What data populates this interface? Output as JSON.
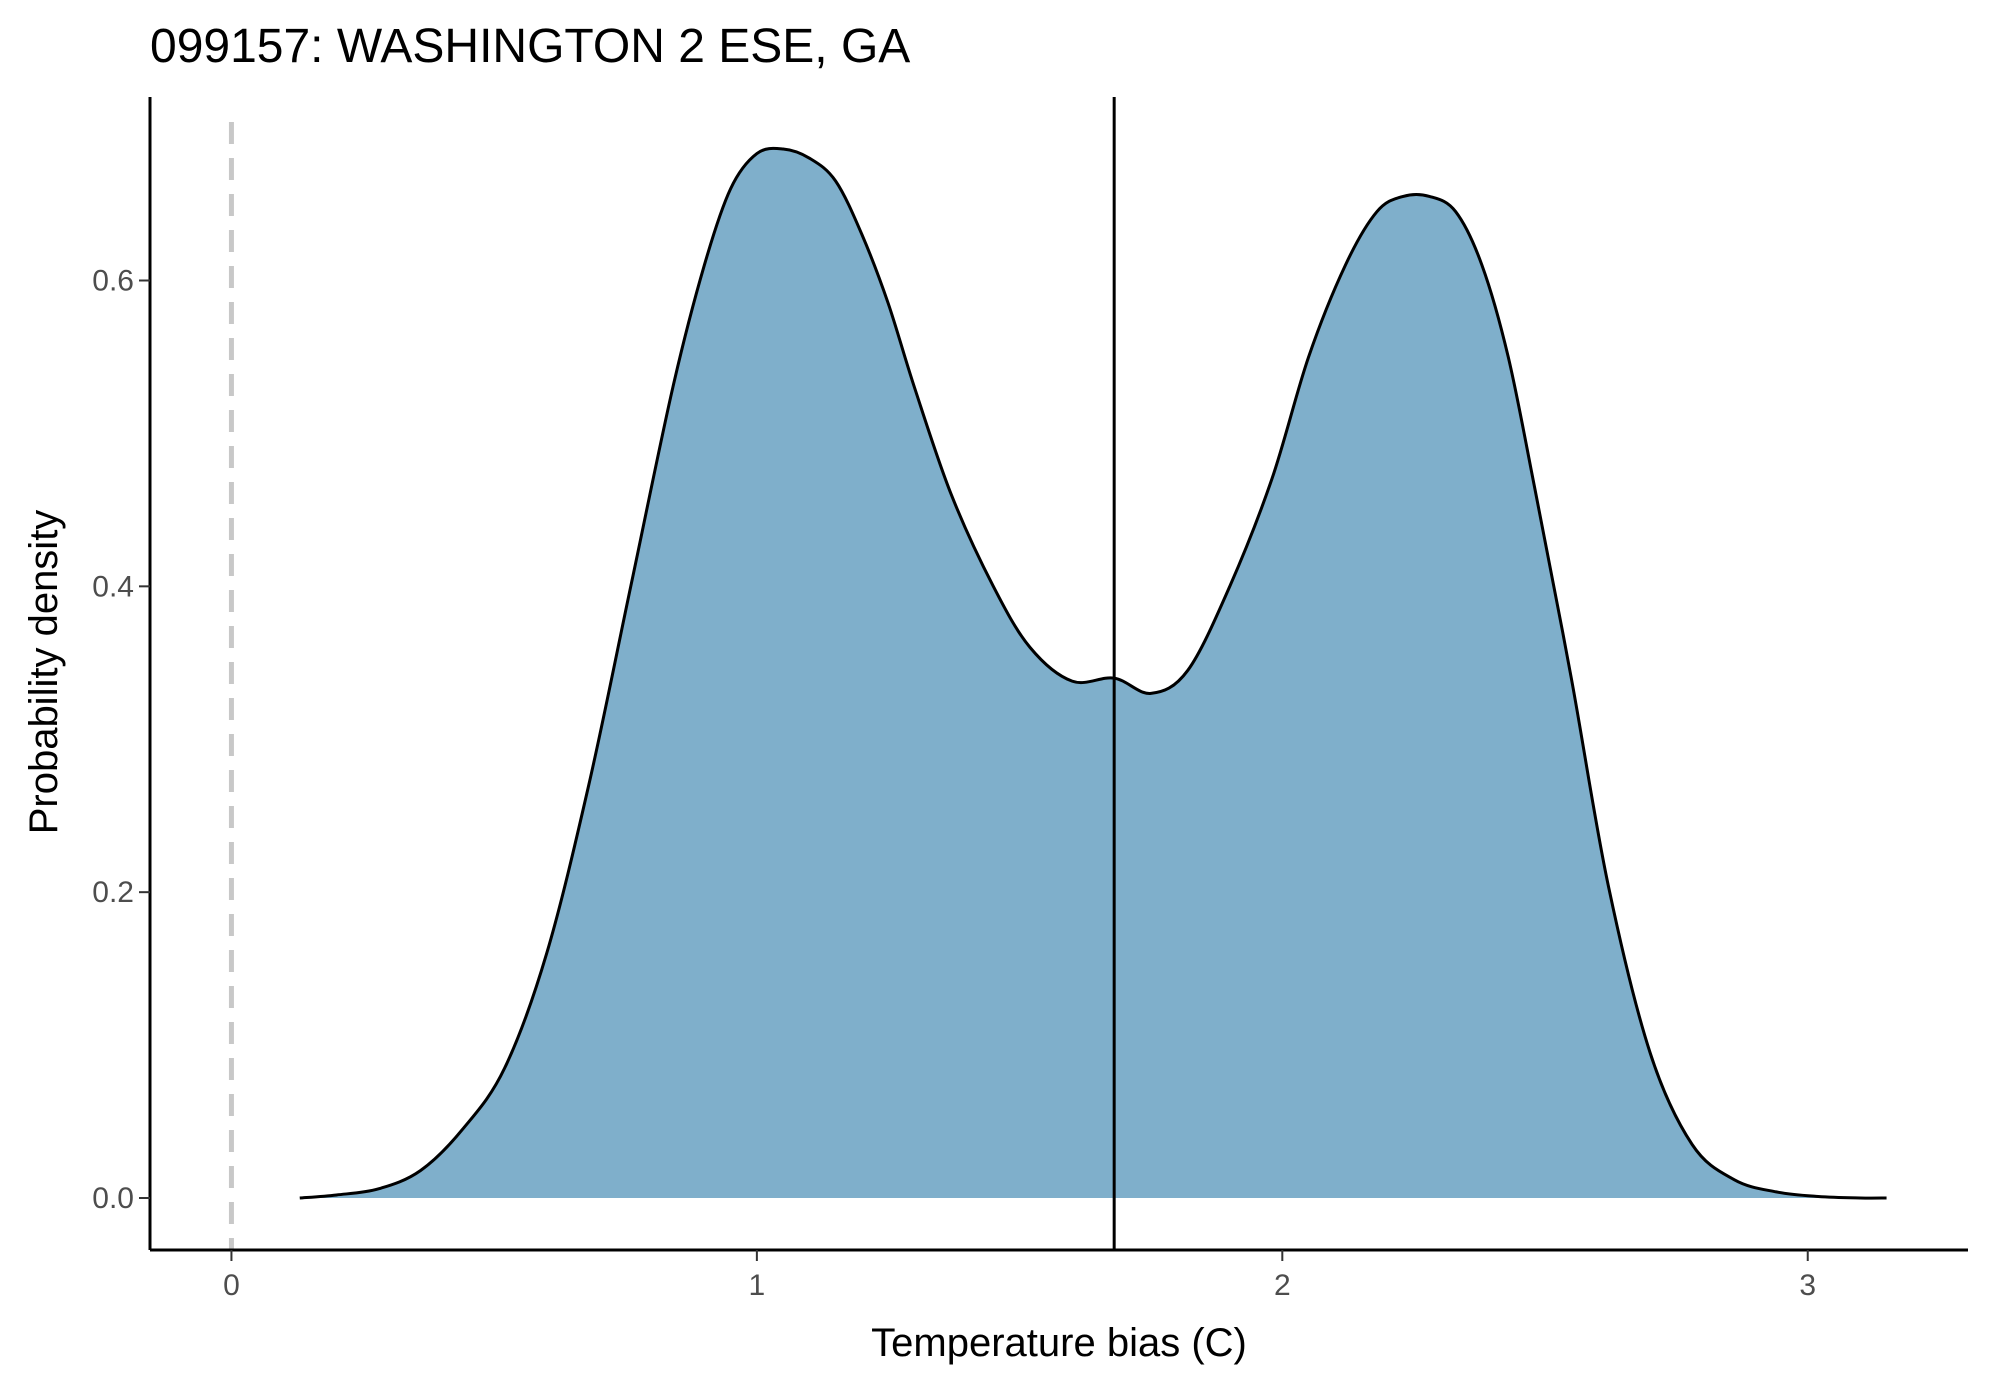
{
  "chart_data": {
    "type": "area",
    "title": "099157: WASHINGTON 2 ESE, GA",
    "xlabel": "Temperature bias (C)",
    "ylabel": "Probability density",
    "xlim": [
      -0.155,
      3.305
    ],
    "ylim": [
      -0.034,
      0.72
    ],
    "xticks": [
      0,
      1,
      2,
      3
    ],
    "xtick_labels": [
      "0",
      "1",
      "2",
      "3"
    ],
    "yticks": [
      0.0,
      0.2,
      0.4,
      0.6
    ],
    "ytick_labels": [
      "0.0",
      "0.2",
      "0.4",
      "0.6"
    ],
    "grid": false,
    "legend": "none",
    "fill_color": "#7fafcb",
    "line_color": "#000000",
    "reference_lines": {
      "zero_line": {
        "x": 0,
        "style": "dashed",
        "color": "#c8c8c8"
      },
      "mean_line": {
        "x": 1.68,
        "style": "solid",
        "color": "#000000"
      }
    },
    "series": [
      {
        "x": [
          0.13,
          0.2,
          0.28,
          0.36,
          0.44,
          0.52,
          0.6,
          0.68,
          0.76,
          0.84,
          0.9,
          0.95,
          1.0,
          1.05,
          1.1,
          1.15,
          1.2,
          1.25,
          1.3,
          1.37,
          1.45,
          1.52,
          1.6,
          1.68,
          1.75,
          1.82,
          1.9,
          1.98,
          2.05,
          2.12,
          2.18,
          2.23,
          2.28,
          2.33,
          2.38,
          2.43,
          2.48,
          2.55,
          2.62,
          2.7,
          2.78,
          2.86,
          2.94,
          3.02,
          3.1,
          3.15
        ],
        "y": [
          0.0,
          0.002,
          0.006,
          0.018,
          0.045,
          0.085,
          0.16,
          0.27,
          0.4,
          0.53,
          0.61,
          0.66,
          0.683,
          0.686,
          0.68,
          0.665,
          0.63,
          0.585,
          0.53,
          0.46,
          0.4,
          0.36,
          0.338,
          0.34,
          0.33,
          0.345,
          0.4,
          0.47,
          0.55,
          0.61,
          0.645,
          0.655,
          0.655,
          0.645,
          0.61,
          0.55,
          0.465,
          0.34,
          0.205,
          0.095,
          0.035,
          0.012,
          0.004,
          0.001,
          0.0,
          0.0
        ]
      }
    ]
  }
}
